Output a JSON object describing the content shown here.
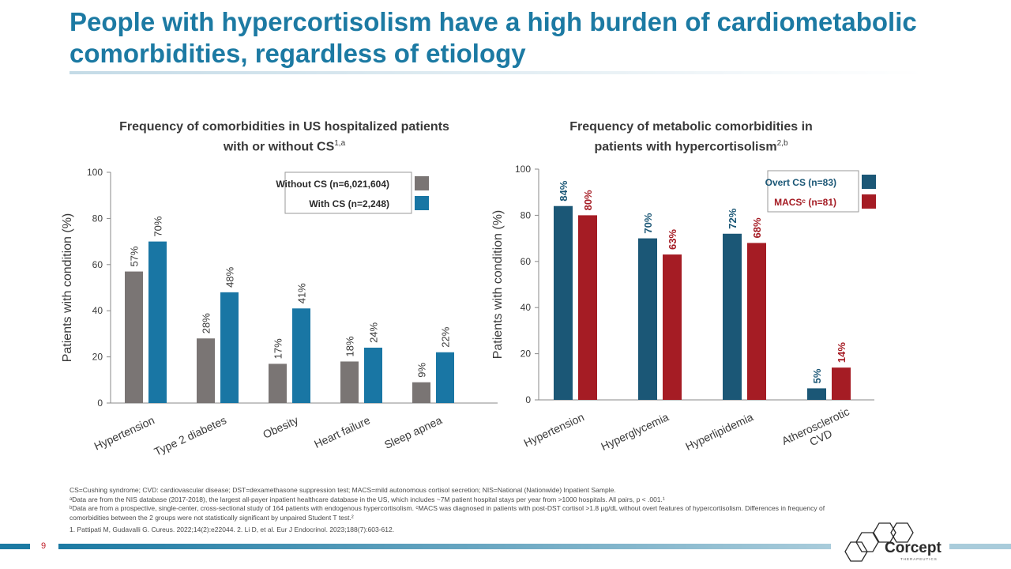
{
  "slide": {
    "title": "People with hypercortisolism have a high burden of cardiometabolic comorbidities, regardless of etiology",
    "page_number": "9",
    "logo_text": "Corcept",
    "logo_subtext": "THERAPEUTICS"
  },
  "colors": {
    "title": "#1c7aa3",
    "without_cs": "#7a7574",
    "with_cs": "#1976a4",
    "overt_cs": "#1b5776",
    "macs": "#a51c24"
  },
  "chart_data": [
    {
      "type": "bar",
      "title_main": "Frequency of comorbidities in US hospitalized patients with or without CS",
      "title_sup": "1,a",
      "ylabel": "Patients with condition (%)",
      "ylim": [
        0,
        100
      ],
      "yticks": [
        0,
        20,
        40,
        60,
        80,
        100
      ],
      "grid": false,
      "legend_position": "top-right",
      "categories": [
        "Hypertension",
        "Type 2 diabetes",
        "Obesity",
        "Heart failure",
        "Sleep apnea"
      ],
      "series": [
        {
          "name": "Without CS (n=6,021,604)",
          "values": [
            57,
            28,
            17,
            18,
            9
          ],
          "labels": [
            "57%",
            "28%",
            "17%",
            "18%",
            "9%"
          ],
          "color": "#7a7574",
          "label_color": "#3a3a3a"
        },
        {
          "name": "With CS (n=2,248)",
          "values": [
            70,
            48,
            41,
            24,
            22
          ],
          "labels": [
            "70%",
            "48%",
            "41%",
            "24%",
            "22%"
          ],
          "color": "#1976a4",
          "label_color": "#3a3a3a"
        }
      ]
    },
    {
      "type": "bar",
      "title_main": "Frequency of metabolic comorbidities in patients with hypercortisolism",
      "title_sup": "2,b",
      "ylabel": "Patients with condition (%)",
      "ylim": [
        0,
        100
      ],
      "yticks": [
        0,
        20,
        40,
        60,
        80,
        100
      ],
      "grid": false,
      "legend_position": "top-right",
      "categories": [
        "Hypertension",
        "Hyperglycemia",
        "Hyperlipidemia",
        "Atherosclerotic CVD"
      ],
      "series": [
        {
          "name": "Overt CS (n=83)",
          "values": [
            84,
            70,
            72,
            5
          ],
          "labels": [
            "84%",
            "70%",
            "72%",
            "5%"
          ],
          "color": "#1b5776",
          "label_color": "#1b5776"
        },
        {
          "name": "MACSᶜ (n=81)",
          "values": [
            80,
            63,
            68,
            14
          ],
          "labels": [
            "80%",
            "63%",
            "68%",
            "14%"
          ],
          "color": "#a51c24",
          "label_color": "#a51c24"
        }
      ]
    }
  ],
  "footnotes": {
    "abbrev": "CS=Cushing syndrome; CVD: cardiovascular disease; DST=dexamethasone suppression test; MACS=mild autonomous cortisol secretion; NIS=National (Nationwide) Inpatient Sample.",
    "a": "ᵃData are from the NIS database (2017-2018), the largest all-payer inpatient healthcare database in the US, which includes ~7M patient hospital stays per year from >1000 hospitals. All pairs, p < .001.¹",
    "b": "ᵇData are from a prospective, single-center, cross-sectional study of 164 patients with endogenous hypercortisolism. ᶜMACS was diagnosed in patients with post-DST cortisol >1.8 µg/dL without overt features of hypercortisolism. Differences in frequency of comorbidities between the 2 groups were not statistically significant by unpaired Student T test.²",
    "references": "1. Pattipati M, Gudavalli G. Cureus. 2022;14(2):e22044. 2. Li D, et al. Eur J Endocrinol. 2023;188(7):603-612."
  }
}
